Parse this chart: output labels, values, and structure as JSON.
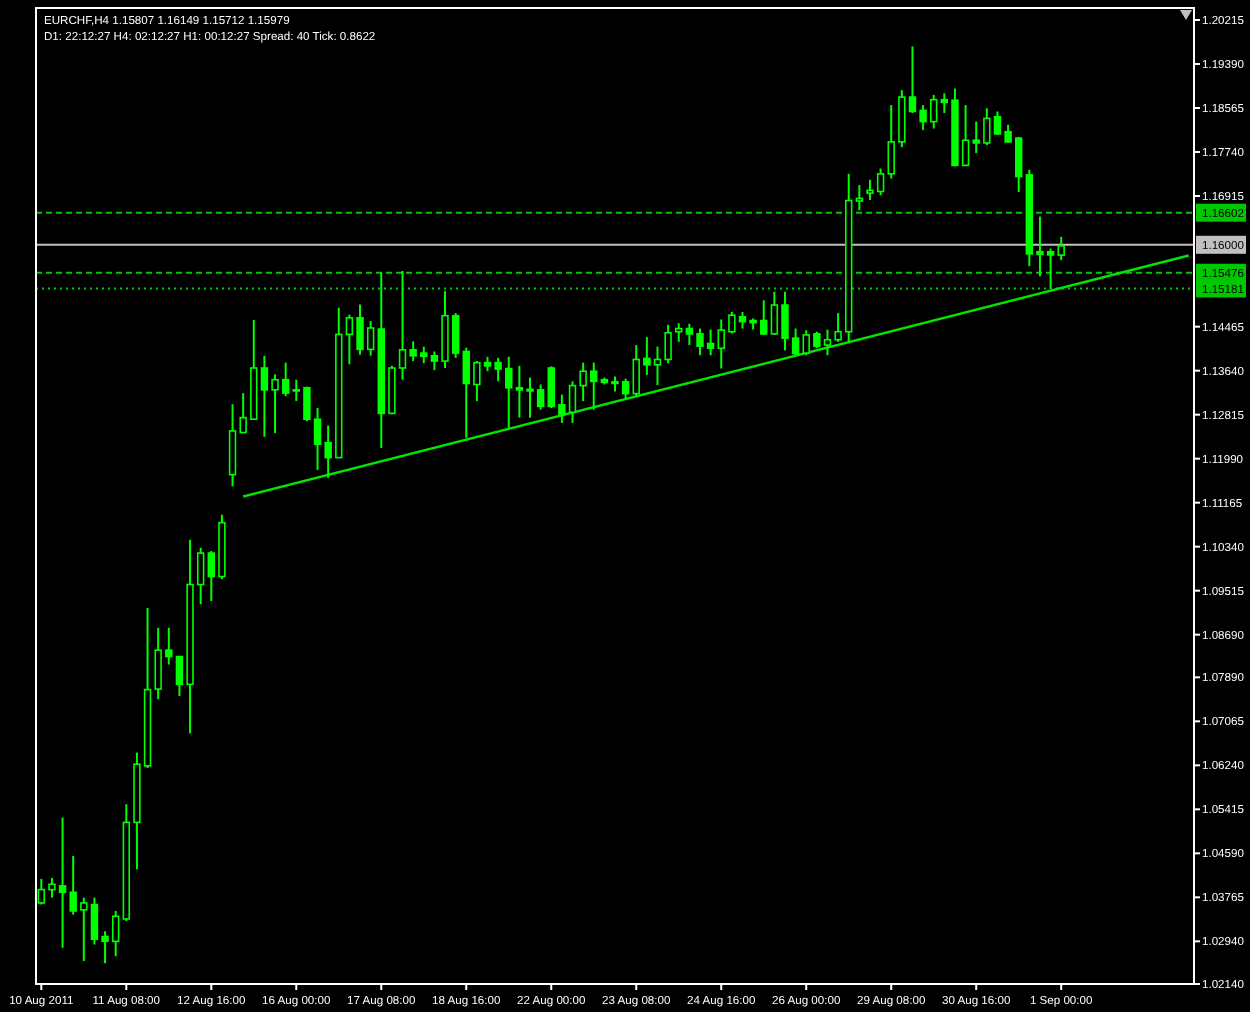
{
  "chart_data": {
    "type": "candlestick",
    "title": "EURCHF,H4  1.15807 1.16149 1.15712 1.15979",
    "subtitle": "D1: 22:12:27  H4: 02:12:27  H1: 00:12:27  Spread: 40 Tick: 0.8622",
    "color": "#00ff00",
    "categories": [
      "10 Aug 2011",
      null,
      null,
      null,
      null,
      null,
      null,
      null,
      "11 Aug 08:00",
      null,
      null,
      null,
      null,
      null,
      null,
      null,
      "12 Aug 16:00",
      null,
      null,
      null,
      null,
      null,
      null,
      null,
      "16 Aug 00:00",
      null,
      null,
      null,
      null,
      null,
      null,
      null,
      "17 Aug 08:00",
      null,
      null,
      null,
      null,
      null,
      null,
      null,
      "18 Aug 16:00",
      null,
      null,
      null,
      null,
      null,
      null,
      null,
      "22 Aug 00:00",
      null,
      null,
      null,
      null,
      null,
      null,
      null,
      "23 Aug 08:00",
      null,
      null,
      null,
      null,
      null,
      null,
      null,
      "24 Aug 16:00",
      null,
      null,
      null,
      null,
      null,
      null,
      null,
      "26 Aug 00:00",
      null,
      null,
      null,
      null,
      null,
      null,
      null,
      "29 Aug 08:00",
      null,
      null,
      null,
      null,
      null,
      null,
      null,
      "30 Aug 16:00",
      null,
      null,
      null,
      null,
      null,
      null,
      null,
      "1 Sep 00:00",
      null,
      null,
      null,
      null,
      null,
      null,
      null,
      null,
      null,
      null,
      null,
      null
    ],
    "ohlc": [
      [
        1.0366,
        1.0411,
        1.0363,
        1.0391
      ],
      [
        1.0391,
        1.0413,
        1.0376,
        1.0401
      ],
      [
        1.0398,
        1.0526,
        1.0282,
        1.0386
      ],
      [
        1.0386,
        1.0454,
        1.0344,
        1.0351
      ],
      [
        1.0353,
        1.0376,
        1.0257,
        1.0366
      ],
      [
        1.0363,
        1.0376,
        1.0288,
        1.0298
      ],
      [
        1.0303,
        1.0313,
        1.0253,
        1.0294
      ],
      [
        1.0294,
        1.0351,
        1.0266,
        1.0341
      ],
      [
        1.0336,
        1.0551,
        1.0332,
        1.0517
      ],
      [
        1.0517,
        1.0648,
        1.0429,
        1.0626
      ],
      [
        1.0623,
        1.0919,
        1.0619,
        1.0766
      ],
      [
        1.0767,
        1.0882,
        1.0748,
        1.084
      ],
      [
        1.084,
        1.0882,
        1.0813,
        1.0828
      ],
      [
        1.0828,
        1.0828,
        1.0754,
        1.0776
      ],
      [
        1.0776,
        1.1047,
        1.0684,
        1.0963
      ],
      [
        1.0963,
        1.1032,
        1.0926,
        1.1022
      ],
      [
        1.1022,
        1.1026,
        1.0932,
        1.0978
      ],
      [
        1.0978,
        1.1094,
        1.0973,
        1.1079
      ],
      [
        1.1169,
        1.1301,
        1.1147,
        1.1251
      ],
      [
        1.1248,
        1.1322,
        1.1248,
        1.1276
      ],
      [
        1.1273,
        1.1459,
        1.1273,
        1.1369
      ],
      [
        1.1369,
        1.1392,
        1.124,
        1.1328
      ],
      [
        1.1328,
        1.1357,
        1.1247,
        1.1347
      ],
      [
        1.1347,
        1.1379,
        1.1316,
        1.1322
      ],
      [
        1.1328,
        1.1347,
        1.1307,
        1.1326
      ],
      [
        1.1332,
        1.1334,
        1.1269,
        1.1273
      ],
      [
        1.1273,
        1.1294,
        1.1178,
        1.1226
      ],
      [
        1.1229,
        1.1261,
        1.1163,
        1.1201
      ],
      [
        1.1201,
        1.1482,
        1.1201,
        1.1432
      ],
      [
        1.1432,
        1.1469,
        1.1376,
        1.1463
      ],
      [
        1.1463,
        1.1488,
        1.1394,
        1.1404
      ],
      [
        1.1404,
        1.1457,
        1.1392,
        1.1444
      ],
      [
        1.1442,
        1.1548,
        1.1219,
        1.1284
      ],
      [
        1.1284,
        1.1373,
        1.1282,
        1.1369
      ],
      [
        1.1369,
        1.1551,
        1.1347,
        1.1403
      ],
      [
        1.1403,
        1.1419,
        1.1382,
        1.1392
      ],
      [
        1.1397,
        1.1409,
        1.1378,
        1.1391
      ],
      [
        1.1392,
        1.14,
        1.1365,
        1.1382
      ],
      [
        1.1382,
        1.1513,
        1.1369,
        1.1467
      ],
      [
        1.1467,
        1.1472,
        1.1388,
        1.1397
      ],
      [
        1.14,
        1.1407,
        1.1238,
        1.134
      ],
      [
        1.1338,
        1.1382,
        1.1307,
        1.1379
      ],
      [
        1.1379,
        1.139,
        1.1363,
        1.1373
      ],
      [
        1.1379,
        1.1388,
        1.1344,
        1.1367
      ],
      [
        1.1368,
        1.139,
        1.1257,
        1.1332
      ],
      [
        1.1332,
        1.1373,
        1.1276,
        1.1328
      ],
      [
        1.1329,
        1.1351,
        1.1276,
        1.1326
      ],
      [
        1.1328,
        1.1338,
        1.1291,
        1.1297
      ],
      [
        1.1369,
        1.1372,
        1.1294,
        1.1297
      ],
      [
        1.13,
        1.1319,
        1.1266,
        1.1282
      ],
      [
        1.1286,
        1.1344,
        1.1266,
        1.1336
      ],
      [
        1.1336,
        1.1379,
        1.1307,
        1.1363
      ],
      [
        1.1363,
        1.1379,
        1.1291,
        1.1344
      ],
      [
        1.1347,
        1.1351,
        1.1338,
        1.1342
      ],
      [
        1.1343,
        1.1353,
        1.1325,
        1.134
      ],
      [
        1.1343,
        1.1349,
        1.1312,
        1.1321
      ],
      [
        1.1321,
        1.1412,
        1.1316,
        1.1385
      ],
      [
        1.1387,
        1.1427,
        1.1356,
        1.1375
      ],
      [
        1.1375,
        1.1409,
        1.1337,
        1.1385
      ],
      [
        1.1385,
        1.145,
        1.1378,
        1.1435
      ],
      [
        1.1437,
        1.1453,
        1.1418,
        1.1443
      ],
      [
        1.1443,
        1.1452,
        1.1412,
        1.1433
      ],
      [
        1.1433,
        1.1443,
        1.1393,
        1.141
      ],
      [
        1.1415,
        1.1441,
        1.1393,
        1.1406
      ],
      [
        1.1406,
        1.146,
        1.1368,
        1.144
      ],
      [
        1.1437,
        1.1474,
        1.1434,
        1.1468
      ],
      [
        1.1465,
        1.1474,
        1.1443,
        1.1456
      ],
      [
        1.1458,
        1.1462,
        1.1441,
        1.1454
      ],
      [
        1.1458,
        1.1496,
        1.1431,
        1.1433
      ],
      [
        1.1433,
        1.1512,
        1.1431,
        1.1487
      ],
      [
        1.1487,
        1.1512,
        1.1402,
        1.1425
      ],
      [
        1.1425,
        1.1443,
        1.1393,
        1.1396
      ],
      [
        1.1397,
        1.144,
        1.1393,
        1.1431
      ],
      [
        1.1433,
        1.1437,
        1.1406,
        1.141
      ],
      [
        1.1412,
        1.1441,
        1.1393,
        1.1422
      ],
      [
        1.1422,
        1.1472,
        1.1418,
        1.1437
      ],
      [
        1.1437,
        1.1733,
        1.1418,
        1.1683
      ],
      [
        1.1682,
        1.1712,
        1.1665,
        1.1687
      ],
      [
        1.1697,
        1.1722,
        1.1684,
        1.1702
      ],
      [
        1.17,
        1.1743,
        1.1693,
        1.1733
      ],
      [
        1.1733,
        1.1862,
        1.1724,
        1.1793
      ],
      [
        1.1793,
        1.189,
        1.1783,
        1.1877
      ],
      [
        1.1877,
        1.1972,
        1.1847,
        1.185
      ],
      [
        1.1852,
        1.1862,
        1.1815,
        1.1831
      ],
      [
        1.1831,
        1.1881,
        1.1818,
        1.1872
      ],
      [
        1.1872,
        1.1884,
        1.1847,
        1.1867
      ],
      [
        1.1871,
        1.1893,
        1.1747,
        1.1749
      ],
      [
        1.1749,
        1.1862,
        1.1747,
        1.1796
      ],
      [
        1.1796,
        1.1831,
        1.1772,
        1.1791
      ],
      [
        1.1791,
        1.1856,
        1.1787,
        1.1837
      ],
      [
        1.184,
        1.185,
        1.1806,
        1.1808
      ],
      [
        1.1812,
        1.1825,
        1.1791,
        1.1793
      ],
      [
        1.18,
        1.1802,
        1.1699,
        1.1728
      ],
      [
        1.1731,
        1.1741,
        1.156,
        1.1583
      ],
      [
        1.1587,
        1.1653,
        1.1541,
        1.1582
      ],
      [
        1.1587,
        1.1593,
        1.1518,
        1.1581
      ],
      [
        1.15807,
        1.16149,
        1.15712,
        1.15979
      ],
      null,
      null,
      null,
      null,
      null,
      null,
      null,
      null,
      null,
      null,
      null,
      null
    ],
    "series": [
      {
        "type": "line",
        "color": "#00e600",
        "values": [
          null,
          null,
          null,
          null,
          null,
          null,
          null,
          null,
          null,
          null,
          null,
          null,
          null,
          null,
          null,
          null,
          null,
          null,
          null,
          1.1128,
          null,
          null,
          null,
          null,
          null,
          null,
          null,
          null,
          null,
          null,
          null,
          null,
          null,
          null,
          null,
          null,
          null,
          null,
          null,
          null,
          null,
          null,
          null,
          null,
          null,
          null,
          null,
          null,
          null,
          null,
          null,
          null,
          null,
          null,
          null,
          null,
          null,
          null,
          null,
          null,
          null,
          null,
          null,
          null,
          null,
          null,
          null,
          null,
          null,
          null,
          null,
          null,
          null,
          null,
          null,
          null,
          null,
          null,
          null,
          null,
          null,
          null,
          null,
          null,
          null,
          null,
          null,
          null,
          null,
          null,
          null,
          null,
          null,
          null,
          null,
          null,
          null,
          null,
          null,
          null,
          null,
          null,
          null,
          null,
          null,
          null,
          null,
          null,
          1.158
        ]
      }
    ],
    "ylim": [
      1.0214,
      1.2044
    ],
    "yticks": [
      {
        "value": 1.20215,
        "label": "1.20215"
      },
      {
        "value": 1.1939,
        "label": "1.19390"
      },
      {
        "value": 1.18565,
        "label": "1.18565"
      },
      {
        "value": 1.1774,
        "label": "1.17740"
      },
      {
        "value": 1.16915,
        "label": "1.16915"
      },
      {
        "value": 1.14465,
        "label": "1.14465"
      },
      {
        "value": 1.1364,
        "label": "1.13640"
      },
      {
        "value": 1.12815,
        "label": "1.12815"
      },
      {
        "value": 1.1199,
        "label": "1.11990"
      },
      {
        "value": 1.11165,
        "label": "1.11165"
      },
      {
        "value": 1.1034,
        "label": "1.10340"
      },
      {
        "value": 1.09515,
        "label": "1.09515"
      },
      {
        "value": 1.0869,
        "label": "1.08690"
      },
      {
        "value": 1.0789,
        "label": "1.07890"
      },
      {
        "value": 1.07065,
        "label": "1.07065"
      },
      {
        "value": 1.0624,
        "label": "1.06240"
      },
      {
        "value": 1.05415,
        "label": "1.05415"
      },
      {
        "value": 1.0459,
        "label": "1.04590"
      },
      {
        "value": 1.03765,
        "label": "1.03765"
      },
      {
        "value": 1.0294,
        "label": "1.02940"
      },
      {
        "value": 1.0214,
        "label": "1.02140"
      }
    ],
    "ref_lines": [
      {
        "axis": "y",
        "value": 1.16602,
        "label": "1.16602",
        "color": "#00c800",
        "line_style": "dashed"
      },
      {
        "axis": "y",
        "value": 1.16,
        "label": "1.16000",
        "color": "#c0c0c0",
        "line_style": "solid"
      },
      {
        "axis": "y",
        "value": 1.15476,
        "label": "1.15476",
        "color": "#00c800",
        "line_style": "dashed"
      },
      {
        "axis": "y",
        "value": 1.15181,
        "label": "1.15181",
        "color": "#00c800",
        "line_style": "dotted"
      }
    ]
  }
}
